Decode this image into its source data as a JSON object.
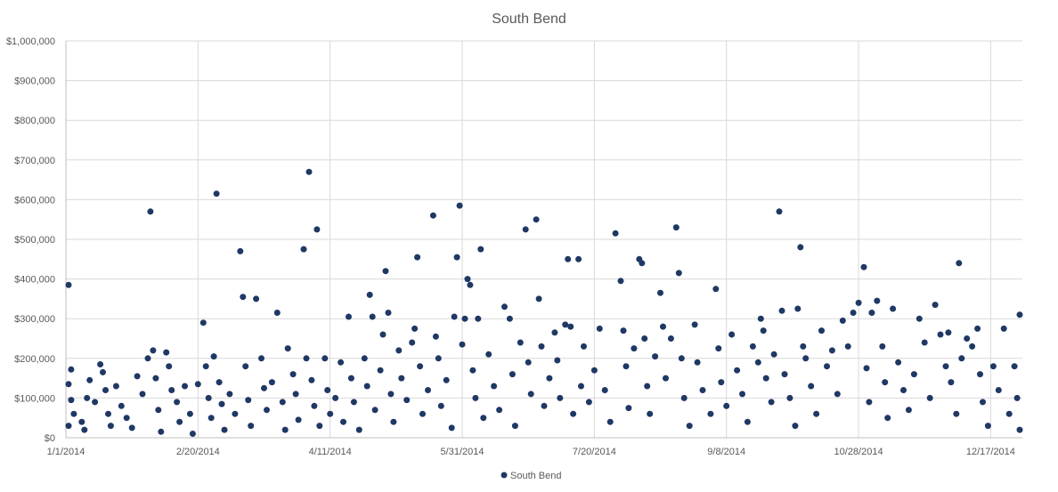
{
  "chart_data": {
    "type": "scatter",
    "title": "South Bend",
    "xlabel": "",
    "ylabel": "",
    "xlim": [
      "2014-01-01",
      "2014-12-29"
    ],
    "ylim": [
      0,
      1000000
    ],
    "x_ticks": [
      "1/1/2014",
      "2/20/2014",
      "4/11/2014",
      "5/31/2014",
      "7/20/2014",
      "9/8/2014",
      "10/28/2014",
      "12/17/2014"
    ],
    "y_ticks": [
      "$0",
      "$100,000",
      "$200,000",
      "$300,000",
      "$400,000",
      "$500,000",
      "$600,000",
      "$700,000",
      "$800,000",
      "$900,000",
      "$1,000,000"
    ],
    "y_tick_values": [
      0,
      100000,
      200000,
      300000,
      400000,
      500000,
      600000,
      700000,
      800000,
      900000,
      1000000
    ],
    "grid": "vertical and horizontal",
    "legend_position": "bottom",
    "colors": {
      "series": "#1f3864",
      "grid": "#d9d9d9",
      "text": "#595959"
    },
    "series": [
      {
        "name": "South Bend",
        "points": [
          [
            "2014-01-02",
            385000
          ],
          [
            "2014-01-03",
            172000
          ],
          [
            "2014-01-02",
            135000
          ],
          [
            "2014-01-03",
            95000
          ],
          [
            "2014-01-04",
            60000
          ],
          [
            "2014-01-02",
            30000
          ],
          [
            "2014-01-07",
            40000
          ],
          [
            "2014-01-08",
            20000
          ],
          [
            "2014-01-09",
            100000
          ],
          [
            "2014-01-10",
            145000
          ],
          [
            "2014-01-12",
            90000
          ],
          [
            "2014-01-14",
            185000
          ],
          [
            "2014-01-15",
            165000
          ],
          [
            "2014-01-16",
            120000
          ],
          [
            "2014-01-17",
            60000
          ],
          [
            "2014-01-18",
            30000
          ],
          [
            "2014-01-20",
            130000
          ],
          [
            "2014-01-22",
            80000
          ],
          [
            "2014-01-24",
            50000
          ],
          [
            "2014-01-26",
            25000
          ],
          [
            "2014-01-28",
            155000
          ],
          [
            "2014-01-30",
            110000
          ],
          [
            "2014-02-01",
            200000
          ],
          [
            "2014-02-02",
            570000
          ],
          [
            "2014-02-03",
            220000
          ],
          [
            "2014-02-04",
            150000
          ],
          [
            "2014-02-05",
            70000
          ],
          [
            "2014-02-06",
            15000
          ],
          [
            "2014-02-08",
            215000
          ],
          [
            "2014-02-09",
            180000
          ],
          [
            "2014-02-10",
            120000
          ],
          [
            "2014-02-12",
            90000
          ],
          [
            "2014-02-13",
            40000
          ],
          [
            "2014-02-15",
            130000
          ],
          [
            "2014-02-17",
            60000
          ],
          [
            "2014-02-18",
            10000
          ],
          [
            "2014-02-20",
            135000
          ],
          [
            "2014-02-22",
            290000
          ],
          [
            "2014-02-23",
            180000
          ],
          [
            "2014-02-24",
            100000
          ],
          [
            "2014-02-25",
            50000
          ],
          [
            "2014-02-26",
            205000
          ],
          [
            "2014-02-27",
            615000
          ],
          [
            "2014-02-28",
            140000
          ],
          [
            "2014-03-01",
            85000
          ],
          [
            "2014-03-02",
            20000
          ],
          [
            "2014-03-04",
            110000
          ],
          [
            "2014-03-06",
            60000
          ],
          [
            "2014-03-08",
            470000
          ],
          [
            "2014-03-09",
            355000
          ],
          [
            "2014-03-10",
            180000
          ],
          [
            "2014-03-11",
            95000
          ],
          [
            "2014-03-12",
            30000
          ],
          [
            "2014-03-14",
            350000
          ],
          [
            "2014-03-16",
            200000
          ],
          [
            "2014-03-17",
            125000
          ],
          [
            "2014-03-18",
            70000
          ],
          [
            "2014-03-20",
            140000
          ],
          [
            "2014-03-22",
            315000
          ],
          [
            "2014-03-24",
            90000
          ],
          [
            "2014-03-25",
            20000
          ],
          [
            "2014-03-26",
            225000
          ],
          [
            "2014-03-28",
            160000
          ],
          [
            "2014-03-29",
            110000
          ],
          [
            "2014-03-30",
            45000
          ],
          [
            "2014-04-01",
            475000
          ],
          [
            "2014-04-02",
            200000
          ],
          [
            "2014-04-03",
            670000
          ],
          [
            "2014-04-04",
            145000
          ],
          [
            "2014-04-05",
            80000
          ],
          [
            "2014-04-06",
            525000
          ],
          [
            "2014-04-07",
            30000
          ],
          [
            "2014-04-09",
            200000
          ],
          [
            "2014-04-10",
            120000
          ],
          [
            "2014-04-11",
            60000
          ],
          [
            "2014-04-13",
            100000
          ],
          [
            "2014-04-15",
            190000
          ],
          [
            "2014-04-16",
            40000
          ],
          [
            "2014-04-18",
            305000
          ],
          [
            "2014-04-19",
            150000
          ],
          [
            "2014-04-20",
            90000
          ],
          [
            "2014-04-22",
            20000
          ],
          [
            "2014-04-24",
            200000
          ],
          [
            "2014-04-25",
            130000
          ],
          [
            "2014-04-26",
            360000
          ],
          [
            "2014-04-27",
            305000
          ],
          [
            "2014-04-28",
            70000
          ],
          [
            "2014-04-30",
            170000
          ],
          [
            "2014-05-01",
            260000
          ],
          [
            "2014-05-02",
            420000
          ],
          [
            "2014-05-03",
            315000
          ],
          [
            "2014-05-04",
            110000
          ],
          [
            "2014-05-05",
            40000
          ],
          [
            "2014-05-07",
            220000
          ],
          [
            "2014-05-08",
            150000
          ],
          [
            "2014-05-10",
            95000
          ],
          [
            "2014-05-12",
            240000
          ],
          [
            "2014-05-13",
            275000
          ],
          [
            "2014-05-14",
            455000
          ],
          [
            "2014-05-15",
            180000
          ],
          [
            "2014-05-16",
            60000
          ],
          [
            "2014-05-18",
            120000
          ],
          [
            "2014-05-20",
            560000
          ],
          [
            "2014-05-21",
            255000
          ],
          [
            "2014-05-22",
            200000
          ],
          [
            "2014-05-23",
            80000
          ],
          [
            "2014-05-25",
            145000
          ],
          [
            "2014-05-27",
            25000
          ],
          [
            "2014-05-28",
            305000
          ],
          [
            "2014-05-29",
            455000
          ],
          [
            "2014-05-30",
            585000
          ],
          [
            "2014-05-31",
            235000
          ],
          [
            "2014-06-01",
            300000
          ],
          [
            "2014-06-02",
            400000
          ],
          [
            "2014-06-03",
            385000
          ],
          [
            "2014-06-04",
            170000
          ],
          [
            "2014-06-05",
            100000
          ],
          [
            "2014-06-06",
            300000
          ],
          [
            "2014-06-07",
            475000
          ],
          [
            "2014-06-08",
            50000
          ],
          [
            "2014-06-10",
            210000
          ],
          [
            "2014-06-12",
            130000
          ],
          [
            "2014-06-14",
            70000
          ],
          [
            "2014-06-16",
            330000
          ],
          [
            "2014-06-18",
            300000
          ],
          [
            "2014-06-19",
            160000
          ],
          [
            "2014-06-20",
            30000
          ],
          [
            "2014-06-22",
            240000
          ],
          [
            "2014-06-24",
            525000
          ],
          [
            "2014-06-25",
            190000
          ],
          [
            "2014-06-26",
            110000
          ],
          [
            "2014-06-28",
            550000
          ],
          [
            "2014-06-29",
            350000
          ],
          [
            "2014-06-30",
            230000
          ],
          [
            "2014-07-01",
            80000
          ],
          [
            "2014-07-03",
            150000
          ],
          [
            "2014-07-05",
            265000
          ],
          [
            "2014-07-06",
            195000
          ],
          [
            "2014-07-07",
            100000
          ],
          [
            "2014-07-09",
            285000
          ],
          [
            "2014-07-10",
            450000
          ],
          [
            "2014-07-11",
            280000
          ],
          [
            "2014-07-12",
            60000
          ],
          [
            "2014-07-14",
            450000
          ],
          [
            "2014-07-15",
            130000
          ],
          [
            "2014-07-16",
            230000
          ],
          [
            "2014-07-18",
            90000
          ],
          [
            "2014-07-20",
            170000
          ],
          [
            "2014-07-22",
            275000
          ],
          [
            "2014-07-24",
            120000
          ],
          [
            "2014-07-26",
            40000
          ],
          [
            "2014-07-28",
            515000
          ],
          [
            "2014-07-30",
            395000
          ],
          [
            "2014-07-31",
            270000
          ],
          [
            "2014-08-01",
            180000
          ],
          [
            "2014-08-02",
            75000
          ],
          [
            "2014-08-04",
            225000
          ],
          [
            "2014-08-06",
            450000
          ],
          [
            "2014-08-07",
            440000
          ],
          [
            "2014-08-08",
            250000
          ],
          [
            "2014-08-09",
            130000
          ],
          [
            "2014-08-10",
            60000
          ],
          [
            "2014-08-12",
            205000
          ],
          [
            "2014-08-14",
            365000
          ],
          [
            "2014-08-15",
            280000
          ],
          [
            "2014-08-16",
            150000
          ],
          [
            "2014-08-18",
            250000
          ],
          [
            "2014-08-20",
            530000
          ],
          [
            "2014-08-21",
            415000
          ],
          [
            "2014-08-22",
            200000
          ],
          [
            "2014-08-23",
            100000
          ],
          [
            "2014-08-25",
            30000
          ],
          [
            "2014-08-27",
            285000
          ],
          [
            "2014-08-28",
            190000
          ],
          [
            "2014-08-30",
            120000
          ],
          [
            "2014-09-02",
            60000
          ],
          [
            "2014-09-04",
            375000
          ],
          [
            "2014-09-05",
            225000
          ],
          [
            "2014-09-06",
            140000
          ],
          [
            "2014-09-08",
            80000
          ],
          [
            "2014-09-10",
            260000
          ],
          [
            "2014-09-12",
            170000
          ],
          [
            "2014-09-14",
            110000
          ],
          [
            "2014-09-16",
            40000
          ],
          [
            "2014-09-18",
            230000
          ],
          [
            "2014-09-20",
            190000
          ],
          [
            "2014-09-21",
            300000
          ],
          [
            "2014-09-22",
            270000
          ],
          [
            "2014-09-23",
            150000
          ],
          [
            "2014-09-25",
            90000
          ],
          [
            "2014-09-26",
            210000
          ],
          [
            "2014-09-28",
            570000
          ],
          [
            "2014-09-29",
            320000
          ],
          [
            "2014-09-30",
            160000
          ],
          [
            "2014-10-02",
            100000
          ],
          [
            "2014-10-04",
            30000
          ],
          [
            "2014-10-05",
            325000
          ],
          [
            "2014-10-06",
            480000
          ],
          [
            "2014-10-07",
            230000
          ],
          [
            "2014-10-08",
            200000
          ],
          [
            "2014-10-10",
            130000
          ],
          [
            "2014-10-12",
            60000
          ],
          [
            "2014-10-14",
            270000
          ],
          [
            "2014-10-16",
            180000
          ],
          [
            "2014-10-18",
            220000
          ],
          [
            "2014-10-20",
            110000
          ],
          [
            "2014-10-22",
            295000
          ],
          [
            "2014-10-24",
            230000
          ],
          [
            "2014-10-26",
            315000
          ],
          [
            "2014-10-28",
            340000
          ],
          [
            "2014-10-30",
            430000
          ],
          [
            "2014-10-31",
            175000
          ],
          [
            "2014-11-01",
            90000
          ],
          [
            "2014-11-02",
            315000
          ],
          [
            "2014-11-04",
            345000
          ],
          [
            "2014-11-06",
            230000
          ],
          [
            "2014-11-07",
            140000
          ],
          [
            "2014-11-08",
            50000
          ],
          [
            "2014-11-10",
            325000
          ],
          [
            "2014-11-12",
            190000
          ],
          [
            "2014-11-14",
            120000
          ],
          [
            "2014-11-16",
            70000
          ],
          [
            "2014-11-18",
            160000
          ],
          [
            "2014-11-20",
            300000
          ],
          [
            "2014-11-22",
            240000
          ],
          [
            "2014-11-24",
            100000
          ],
          [
            "2014-11-26",
            335000
          ],
          [
            "2014-11-28",
            260000
          ],
          [
            "2014-11-30",
            180000
          ],
          [
            "2014-12-01",
            265000
          ],
          [
            "2014-12-02",
            140000
          ],
          [
            "2014-12-04",
            60000
          ],
          [
            "2014-12-05",
            440000
          ],
          [
            "2014-12-06",
            200000
          ],
          [
            "2014-12-08",
            250000
          ],
          [
            "2014-12-10",
            230000
          ],
          [
            "2014-12-12",
            275000
          ],
          [
            "2014-12-13",
            160000
          ],
          [
            "2014-12-14",
            90000
          ],
          [
            "2014-12-16",
            30000
          ],
          [
            "2014-12-18",
            180000
          ],
          [
            "2014-12-20",
            120000
          ],
          [
            "2014-12-22",
            275000
          ],
          [
            "2014-12-24",
            60000
          ],
          [
            "2014-12-26",
            180000
          ],
          [
            "2014-12-27",
            100000
          ],
          [
            "2014-12-28",
            310000
          ],
          [
            "2014-12-28",
            20000
          ]
        ]
      }
    ]
  }
}
